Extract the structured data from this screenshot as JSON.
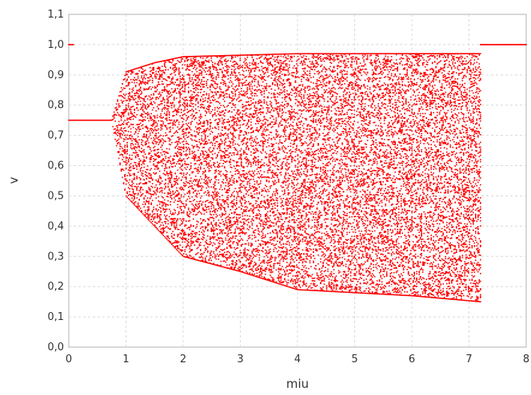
{
  "chart_data": {
    "type": "scatter",
    "title": "",
    "xlabel": "miu",
    "ylabel": "v",
    "xlim": [
      0,
      8
    ],
    "ylim": [
      0.0,
      1.1
    ],
    "x_ticks": [
      "0",
      "1",
      "2",
      "3",
      "4",
      "5",
      "6",
      "7",
      "8"
    ],
    "y_ticks": [
      "0,0",
      "0,1",
      "0,2",
      "0,3",
      "0,4",
      "0,5",
      "0,6",
      "0,7",
      "0,8",
      "0,9",
      "1,0",
      "1,1"
    ],
    "grid": true,
    "legend": "none",
    "series": [
      {
        "color": "#ff0000",
        "fixed_points": [
          {
            "x": 0.0,
            "y": 1.0
          },
          {
            "x": 0.1,
            "y": 1.0
          },
          {
            "x": 0.1,
            "y": 0.75
          },
          {
            "x": 0.3,
            "y": 0.75
          },
          {
            "x": 0.5,
            "y": 0.75
          },
          {
            "x": 0.75,
            "y": 0.75
          },
          {
            "x": 7.2,
            "y": 1.0
          },
          {
            "x": 7.5,
            "y": 1.0
          },
          {
            "x": 8.0,
            "y": 1.0
          }
        ],
        "chaotic_envelope": [
          {
            "x": 0.75,
            "low": 0.75,
            "high": 0.75
          },
          {
            "x": 1.0,
            "low": 0.5,
            "high": 0.91
          },
          {
            "x": 1.5,
            "low": 0.4,
            "high": 0.94
          },
          {
            "x": 2.0,
            "low": 0.3,
            "high": 0.96
          },
          {
            "x": 3.0,
            "low": 0.25,
            "high": 0.965
          },
          {
            "x": 4.0,
            "low": 0.19,
            "high": 0.97
          },
          {
            "x": 5.0,
            "low": 0.18,
            "high": 0.97
          },
          {
            "x": 6.0,
            "low": 0.17,
            "high": 0.97
          },
          {
            "x": 7.2,
            "low": 0.15,
            "high": 0.97
          }
        ]
      }
    ]
  }
}
